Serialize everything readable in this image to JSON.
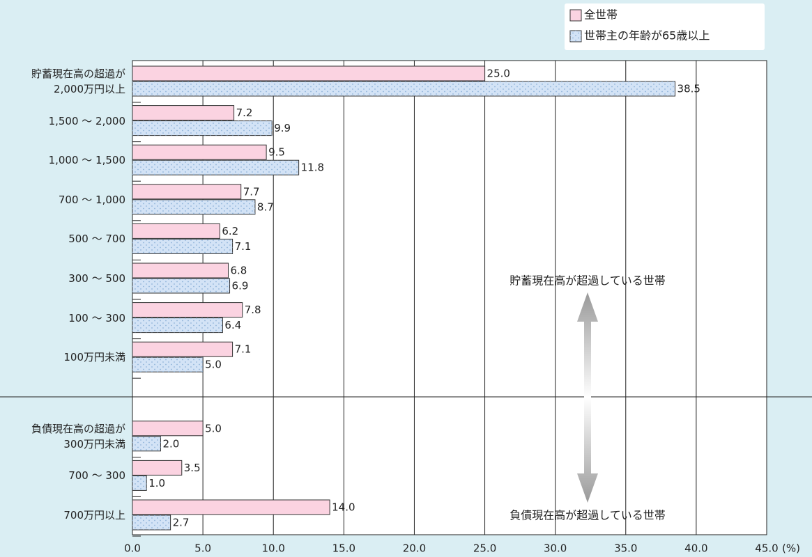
{
  "chart_data": {
    "type": "barh",
    "categories": [
      "貯蓄現在高の超過が\n2,000万円以上",
      "1,500 ～ 2,000",
      "1,000 ～ 1,500",
      "700 ～ 1,000",
      "500 ～ 700",
      "300 ～ 500",
      "100 ～ 300",
      "100万円未満",
      "負債現在高の超過が\n300万円未満",
      "700 ～ 300",
      "700万円以上"
    ],
    "series": [
      {
        "name": "全世帯",
        "color": "#fbd3e1",
        "values": [
          25,
          7.2,
          9.5,
          7.7,
          6.2,
          6.8,
          7.8,
          7.1,
          5,
          3.5,
          14
        ],
        "value_labels": [
          "25.0",
          "7.2",
          "9.5",
          "7.7",
          "6.2",
          "6.8",
          "7.8",
          "7.1",
          "5.0",
          "3.5",
          "14.0"
        ]
      },
      {
        "name": "世帯主の年齢が65歳以上",
        "color": "#d3e3f6",
        "values": [
          38.5,
          9.9,
          11.8,
          8.7,
          7.1,
          6.9,
          6.4,
          5,
          2,
          1,
          2.7
        ],
        "value_labels": [
          "38.5",
          "9.9",
          "11.8",
          "8.7",
          "7.1",
          "6.9",
          "6.4",
          "5.0",
          "2.0",
          "1.0",
          "2.7"
        ]
      }
    ],
    "xlim": [
      0,
      45
    ],
    "xticks": [
      {
        "value": 0,
        "label": "0.0"
      },
      {
        "value": 5,
        "label": "5.0"
      },
      {
        "value": 10,
        "label": "10.0"
      },
      {
        "value": 15,
        "label": "15.0"
      },
      {
        "value": 20,
        "label": "20.0"
      },
      {
        "value": 25,
        "label": "25.0"
      },
      {
        "value": 30,
        "label": "30.0"
      },
      {
        "value": 35,
        "label": "35.0"
      },
      {
        "value": 40,
        "label": "40.0"
      },
      {
        "value": 45,
        "label": "45.0"
      }
    ],
    "x_unit": "(%)",
    "annotations": [
      "貯蓄現在高が超過している世帯",
      "負債現在高が超過している世帯"
    ],
    "grid": true
  }
}
